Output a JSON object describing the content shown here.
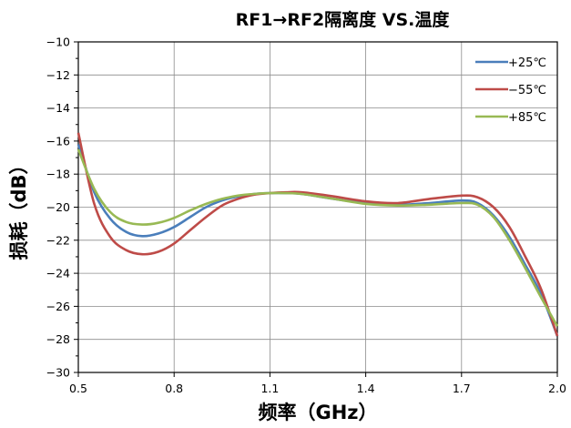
{
  "chart_data": {
    "type": "line",
    "title": "RF1→RF2隔离度 VS.温度",
    "xlabel": "频率（GHz）",
    "ylabel": "损耗（dB）",
    "xlim": [
      0.5,
      2.0
    ],
    "ylim": [
      -30,
      -10
    ],
    "xticks": [
      0.5,
      0.8,
      1.1,
      1.4,
      1.7,
      2.0
    ],
    "xtick_labels": [
      "0.5",
      "0.8",
      "1.1",
      "1.4",
      "1.7",
      "2.0"
    ],
    "yticks": [
      -10,
      -12,
      -14,
      -16,
      -18,
      -20,
      -22,
      -24,
      -26,
      -28,
      -30
    ],
    "ytick_labels": [
      "−10",
      "−12",
      "−14",
      "−16",
      "−18",
      "−20",
      "−22",
      "−24",
      "−26",
      "−28",
      "−30"
    ],
    "grid": true,
    "legend_position": "top-right",
    "series": [
      {
        "name": "+25℃",
        "color": "#4a7ebb",
        "x": [
          0.5,
          0.55,
          0.6,
          0.65,
          0.7,
          0.75,
          0.8,
          0.85,
          0.9,
          0.95,
          1.0,
          1.05,
          1.1,
          1.15,
          1.2,
          1.3,
          1.4,
          1.5,
          1.6,
          1.7,
          1.75,
          1.8,
          1.85,
          1.9,
          1.95,
          2.0
        ],
        "values": [
          -16.2,
          -19.1,
          -20.7,
          -21.5,
          -21.75,
          -21.6,
          -21.2,
          -20.6,
          -20.0,
          -19.6,
          -19.35,
          -19.2,
          -19.15,
          -19.15,
          -19.2,
          -19.5,
          -19.75,
          -19.85,
          -19.75,
          -19.6,
          -19.75,
          -20.5,
          -21.8,
          -23.5,
          -25.3,
          -27.8
        ]
      },
      {
        "name": "−55℃",
        "color": "#be4b48",
        "x": [
          0.5,
          0.55,
          0.6,
          0.65,
          0.7,
          0.75,
          0.8,
          0.85,
          0.9,
          0.95,
          1.0,
          1.05,
          1.1,
          1.15,
          1.2,
          1.3,
          1.4,
          1.5,
          1.6,
          1.7,
          1.75,
          1.8,
          1.85,
          1.9,
          1.95,
          2.0
        ],
        "values": [
          -15.5,
          -19.8,
          -21.8,
          -22.6,
          -22.85,
          -22.7,
          -22.2,
          -21.4,
          -20.6,
          -19.9,
          -19.5,
          -19.25,
          -19.15,
          -19.1,
          -19.1,
          -19.35,
          -19.65,
          -19.75,
          -19.5,
          -19.3,
          -19.4,
          -20.0,
          -21.2,
          -23.0,
          -25.0,
          -27.8
        ]
      },
      {
        "name": "+85℃",
        "color": "#98b954",
        "x": [
          0.5,
          0.55,
          0.6,
          0.65,
          0.7,
          0.75,
          0.8,
          0.85,
          0.9,
          0.95,
          1.0,
          1.05,
          1.1,
          1.15,
          1.2,
          1.3,
          1.4,
          1.5,
          1.6,
          1.7,
          1.75,
          1.8,
          1.85,
          1.9,
          1.95,
          2.0
        ],
        "values": [
          -16.5,
          -18.9,
          -20.3,
          -20.9,
          -21.05,
          -20.95,
          -20.65,
          -20.2,
          -19.8,
          -19.5,
          -19.3,
          -19.2,
          -19.15,
          -19.15,
          -19.2,
          -19.5,
          -19.8,
          -19.9,
          -19.85,
          -19.75,
          -19.85,
          -20.6,
          -22.0,
          -23.7,
          -25.5,
          -27.2
        ]
      }
    ]
  }
}
